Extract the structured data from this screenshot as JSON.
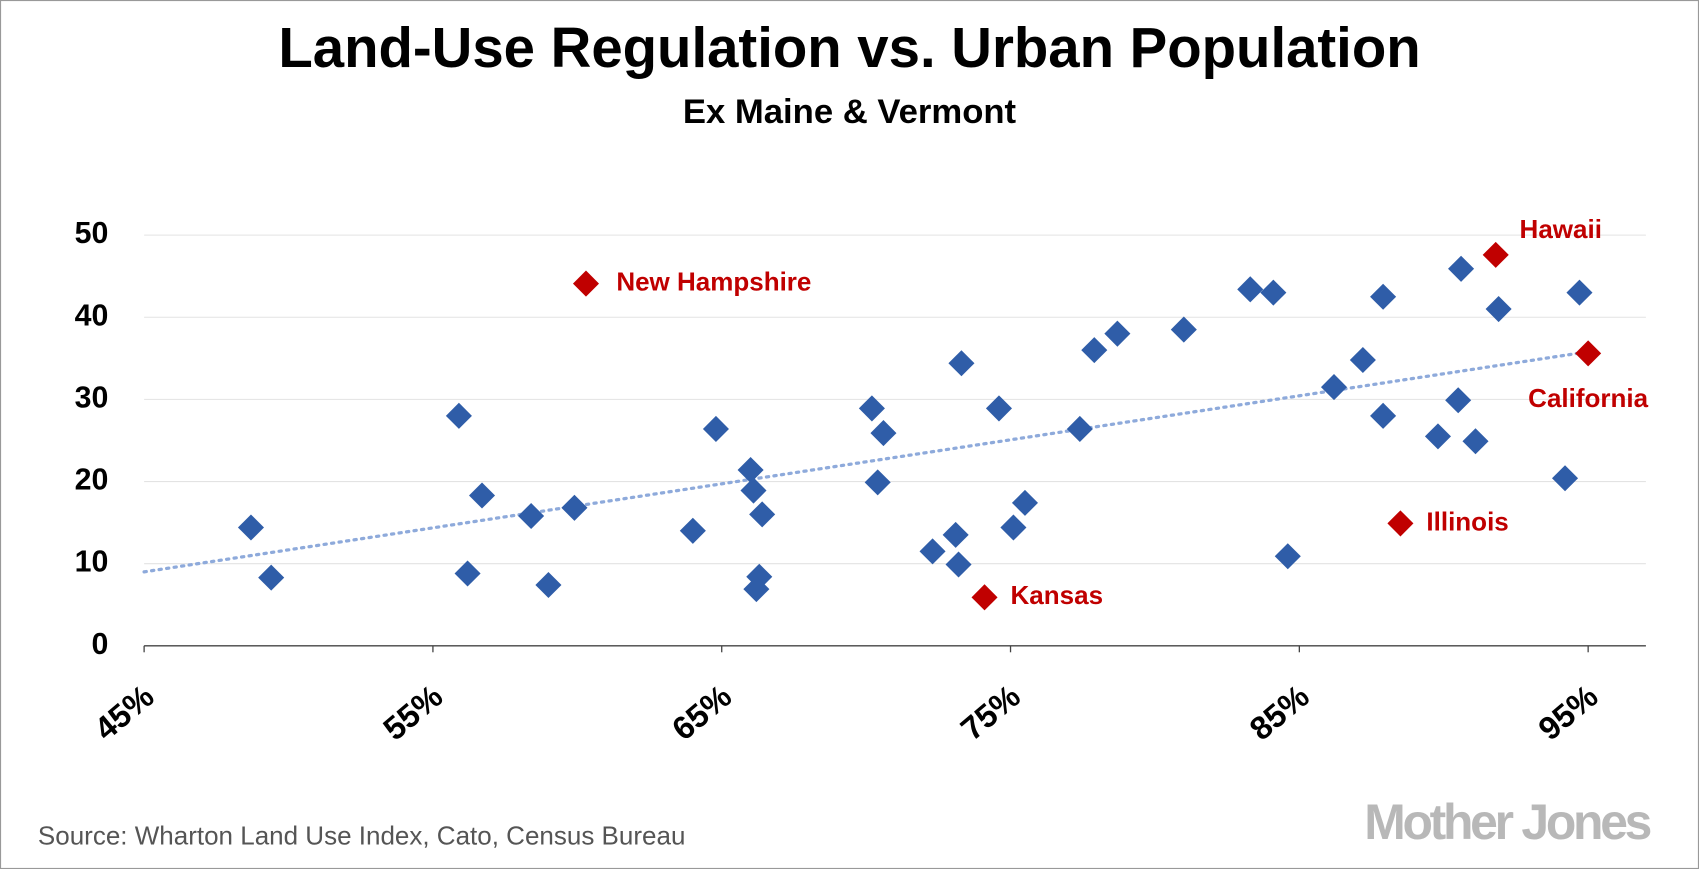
{
  "chart_data": {
    "type": "scatter",
    "title": "Land-Use Regulation vs. Urban Population",
    "subtitle": "Ex Maine & Vermont",
    "source": "Source: Wharton Land Use Index, Cato, Census Bureau",
    "logo": "Mother Jones",
    "xlim": [
      45,
      97
    ],
    "ylim": [
      0,
      50
    ],
    "xticks": [
      {
        "value": 45,
        "label": "45%"
      },
      {
        "value": 55,
        "label": "55%"
      },
      {
        "value": 65,
        "label": "65%"
      },
      {
        "value": 75,
        "label": "75%"
      },
      {
        "value": 85,
        "label": "85%"
      },
      {
        "value": 95,
        "label": "95%"
      }
    ],
    "yticks": [
      0,
      10,
      20,
      30,
      40,
      50
    ],
    "grid": true,
    "series": [
      {
        "color": "#2f5da8",
        "x": [
          48.7,
          49.4,
          55.9,
          56.2,
          56.7,
          58.4,
          59.0,
          59.9,
          64.0,
          64.8,
          66.0,
          66.1,
          66.4,
          66.3,
          66.2,
          70.2,
          70.6,
          70.4,
          72.3,
          73.1,
          73.2,
          73.3,
          74.6,
          75.1,
          75.5,
          77.4,
          77.9,
          78.7,
          81.0,
          83.3,
          84.1,
          84.6,
          86.2,
          87.2,
          87.9,
          87.9,
          89.8,
          90.5,
          90.6,
          91.1,
          91.9,
          94.2,
          94.7
        ],
        "values": [
          14.4,
          8.3,
          28.0,
          8.8,
          18.3,
          15.8,
          7.4,
          16.8,
          14.0,
          26.4,
          21.4,
          18.9,
          16.0,
          8.4,
          6.9,
          28.9,
          25.9,
          19.9,
          11.5,
          13.5,
          9.9,
          34.4,
          28.9,
          14.4,
          17.4,
          26.4,
          36.0,
          38.0,
          38.5,
          43.4,
          43.0,
          10.9,
          31.5,
          34.8,
          28.0,
          42.5,
          25.5,
          29.9,
          45.9,
          24.9,
          41.0,
          20.4,
          43.0
        ]
      }
    ],
    "highlights": {
      "color": "#c00000",
      "labels": [
        "New Hampshire",
        "Kansas",
        "Illinois",
        "Hawaii",
        "California"
      ],
      "x": [
        60.3,
        74.1,
        88.5,
        91.8,
        95.0
      ],
      "values": [
        44.1,
        5.9,
        14.9,
        47.6,
        35.6
      ]
    },
    "trendline": {
      "color": "#8eaadb",
      "x": [
        45,
        95
      ],
      "values": [
        9.0,
        35.8
      ]
    }
  }
}
